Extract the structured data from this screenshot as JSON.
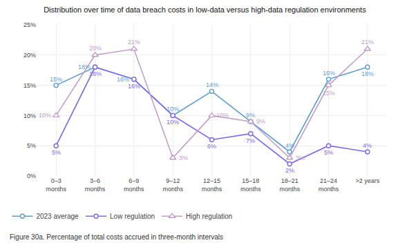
{
  "chart_data": {
    "type": "line",
    "title": "Distribution over time of data breach costs in low-data versus high-data regulation environments",
    "caption": "Figure 30a. Percentage of total costs accrued in three-month intervals",
    "categories": [
      "0–3\nmonths",
      "3–6\nmonths",
      "6–9\nmonths",
      "9–12\nmonths",
      "12–15\nmonths",
      "15–18\nmonths",
      "18–21\nmonths",
      "21–24\nmonths",
      ">2 years"
    ],
    "series": [
      {
        "name": "2023 average",
        "color": "#5b9bd5",
        "marker": "circle",
        "values": [
          15,
          18,
          16,
          10,
          14,
          9,
          4,
          16,
          18
        ],
        "value_labels": [
          "15%",
          "18%",
          "16%",
          "10%",
          "14%",
          "9%",
          "4%",
          "16%",
          "18%"
        ]
      },
      {
        "name": "Low regulation",
        "color": "#7b68ee",
        "marker": "circle",
        "values": [
          5,
          18,
          16,
          10,
          6,
          7,
          2,
          5,
          4
        ],
        "value_labels": [
          "5%",
          "18%",
          "16%",
          "10%",
          "6%",
          "7%",
          "2%",
          "5%",
          "4%"
        ]
      },
      {
        "name": "High regulation",
        "color": "#c09ec8",
        "marker": "triangle-up",
        "values": [
          10,
          20,
          21,
          3,
          10,
          9,
          3,
          15,
          21
        ],
        "value_labels": [
          "10%",
          "20%",
          "21%",
          "3%",
          "10%",
          "9%",
          "3%",
          "15%",
          "21%"
        ]
      }
    ],
    "ylim": [
      0,
      25
    ],
    "yticks": [
      {
        "value": 0,
        "label": "0%"
      },
      {
        "value": 5,
        "label": "5%"
      },
      {
        "value": 10,
        "label": "10%"
      },
      {
        "value": 15,
        "label": "15%"
      },
      {
        "value": 20,
        "label": "20%"
      },
      {
        "value": 25,
        "label": "25%"
      }
    ],
    "grid": true,
    "legend": "bottom",
    "data_labels": true
  }
}
